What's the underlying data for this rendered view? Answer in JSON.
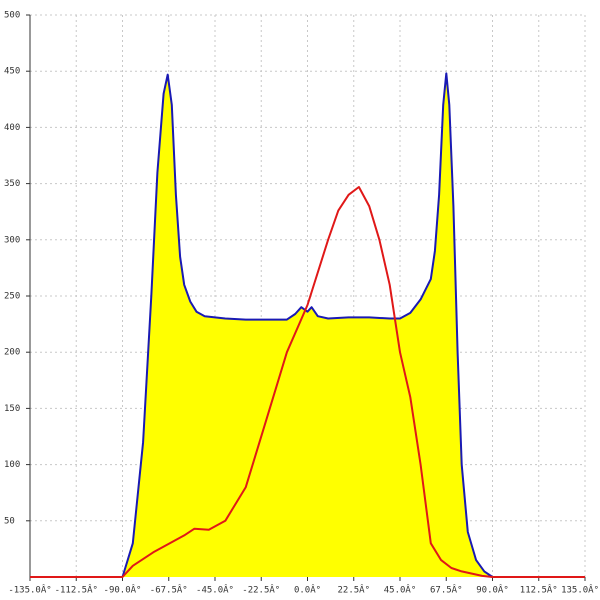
{
  "chart_data": {
    "type": "area",
    "xlim": [
      -135,
      135
    ],
    "ylim": [
      0,
      500
    ],
    "xticks": [
      {
        "value": -135,
        "label": "-135.0Â°"
      },
      {
        "value": -112.5,
        "label": "-112.5Â°"
      },
      {
        "value": -90,
        "label": "-90.0Â°"
      },
      {
        "value": -67.5,
        "label": "-67.5Â°"
      },
      {
        "value": -45,
        "label": "-45.0Â°"
      },
      {
        "value": -22.5,
        "label": "-22.5Â°"
      },
      {
        "value": 0,
        "label": "0.0Â°"
      },
      {
        "value": 22.5,
        "label": "22.5Â°"
      },
      {
        "value": 45,
        "label": "45.0Â°"
      },
      {
        "value": 67.5,
        "label": "67.5Â°"
      },
      {
        "value": 90,
        "label": "90.0Â°"
      },
      {
        "value": 112.5,
        "label": "112.5Â°"
      },
      {
        "value": 135,
        "label": "135.0Â°"
      }
    ],
    "yticks": [
      50,
      100,
      150,
      200,
      250,
      300,
      350,
      400,
      450,
      500
    ],
    "grid": true,
    "series": [
      {
        "color": "#1a1ab4",
        "fill": "#ffff00",
        "x": [
          -90,
          -85,
          -80,
          -76,
          -73,
          -70,
          -68,
          -66,
          -64,
          -62,
          -60,
          -57,
          -54,
          -50,
          -45,
          -40,
          -30,
          -20,
          -10,
          -6,
          -3,
          0,
          2,
          5,
          10,
          20,
          30,
          40,
          45,
          50,
          55,
          60,
          62,
          64,
          66,
          67.5,
          69,
          71,
          73,
          75,
          78,
          82,
          86,
          90
        ],
        "values": [
          0,
          30,
          120,
          250,
          360,
          430,
          447,
          420,
          340,
          285,
          260,
          245,
          236,
          232,
          231,
          230,
          229,
          229,
          229,
          234,
          240,
          236,
          240,
          232,
          230,
          231,
          231,
          230,
          230,
          235,
          247,
          265,
          290,
          340,
          420,
          448,
          420,
          330,
          200,
          100,
          40,
          15,
          5,
          0
        ]
      },
      {
        "color": "#e01818",
        "x": [
          -135,
          -90,
          -85,
          -75,
          -67,
          -60,
          -55,
          -48,
          -40,
          -30,
          -20,
          -10,
          0,
          10,
          15,
          20,
          25,
          30,
          35,
          40,
          45,
          50,
          55,
          60,
          65,
          70,
          75,
          80,
          85,
          90,
          135
        ],
        "values": [
          0,
          0,
          10,
          22,
          30,
          37,
          43,
          42,
          50,
          80,
          140,
          200,
          242,
          300,
          326,
          340,
          347,
          330,
          300,
          260,
          200,
          160,
          100,
          30,
          15,
          8,
          5,
          3,
          1,
          0,
          0
        ]
      }
    ]
  }
}
